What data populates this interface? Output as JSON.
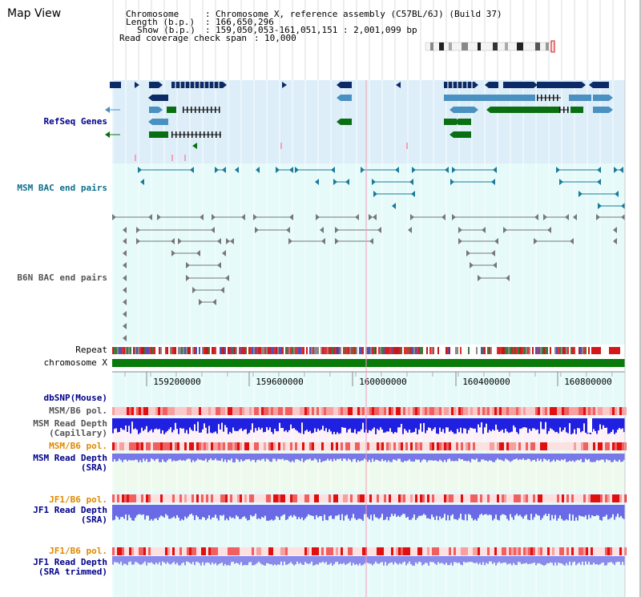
{
  "header": {
    "title": "Map View",
    "chromosome_key": "Chromosome",
    "chromosome_value": "Chromosome X, reference assembly (C57BL/6J) (Build 37)",
    "length_key": "Length (b.p.)",
    "length_value": "166,650,296",
    "show_key": "Show (b.p.)",
    "show_value": "159,050,053-161,051,151 : 2,001,099 bp",
    "coverage_key": "Read coverage check span",
    "coverage_value": "10,000"
  },
  "tracks": {
    "refseq": "RefSeq Genes",
    "msm_bac": "MSM BAC end pairs",
    "b6n_bac": "B6N BAC end pairs",
    "repeat": "Repeat",
    "chromosome": "chromosome X",
    "dbsnp": "dbSNP(Mouse)",
    "msm_pol_1": "MSM/B6 pol.",
    "msm_depth_cap_1": "MSM Read Depth",
    "msm_depth_cap_2": "(Capillary)",
    "msm_pol_2": "MSM/B6 pol.",
    "msm_depth_sra_1": "MSM Read Depth",
    "msm_depth_sra_2": "(SRA)",
    "jf1_pol_1": "JF1/B6 pol.",
    "jf1_depth_1": "JF1 Read Depth",
    "jf1_depth_2": "(SRA)",
    "jf1_pol_2": "JF1/B6 pol.",
    "jf1_trim_1": "JF1 Read Depth",
    "jf1_trim_2": "(SRA trimmed)"
  },
  "axis": {
    "ticks": [
      "159200000",
      "159600000",
      "160000000",
      "160400000",
      "160800000"
    ]
  },
  "colors": {
    "refseq_bg": "#ddeef9",
    "bac_bg": "#e6fafa",
    "depth_bg": "#fdf1f7",
    "sra_bg": "#eefaee",
    "navy": "#0b2a66",
    "steel": "#4a90c0",
    "green": "#0a6e12",
    "chrom_green": "#0a7a0a",
    "teal": "#1a7a9a",
    "gray": "#777777",
    "blue_depth": "#2020e0",
    "lav_depth": "#7878e8"
  }
}
